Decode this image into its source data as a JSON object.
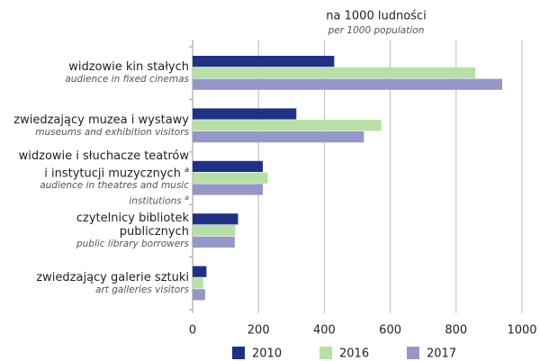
{
  "chart_data": {
    "type": "barh",
    "title": "na 1000 ludności",
    "subtitle": "per 1000 population",
    "categories": [
      "widzowie kin stałych",
      "zwiedzający muzea i wystawy",
      "widzowie i słuchacze teatrów i instytucji muzycznych",
      "czytelnicy bibliotek publicznych",
      "zwiedzający galerie sztuki"
    ],
    "categories_en": [
      "audience in fixed cinemas",
      "museums and exhibition visitors",
      "audience in theatres and music institutions",
      "public library borrowers",
      "art galleries visitors"
    ],
    "category_notes": [
      null,
      null,
      "a",
      null,
      null
    ],
    "series": [
      {
        "name": "2010",
        "color": "#1f3184",
        "values": [
          430,
          315,
          213,
          138,
          42
        ]
      },
      {
        "name": "2016",
        "color": "#b7e0a5",
        "values": [
          858,
          573,
          228,
          130,
          32
        ]
      },
      {
        "name": "2017",
        "color": "#9597c8",
        "values": [
          940,
          520,
          213,
          128,
          38
        ]
      }
    ],
    "xlim": [
      0,
      1000
    ],
    "xticks": [
      0,
      200,
      400,
      600,
      800,
      1000
    ],
    "grid": true
  }
}
